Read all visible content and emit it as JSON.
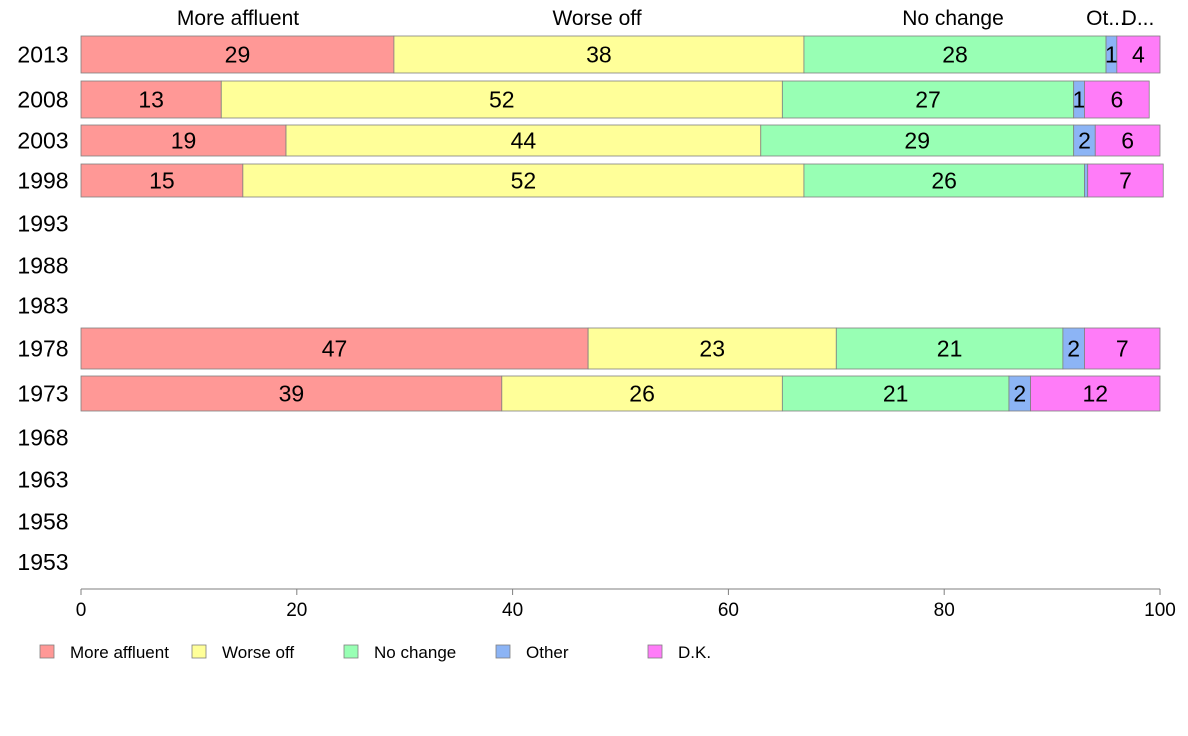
{
  "chart_data": {
    "type": "bar",
    "orientation": "horizontal",
    "stacked": true,
    "categories": [
      "2013",
      "2008",
      "2003",
      "1998",
      "1993",
      "1988",
      "1983",
      "1978",
      "1973",
      "1968",
      "1963",
      "1958",
      "1953"
    ],
    "series": [
      {
        "name": "More affluent",
        "color": "#ff9896",
        "values": [
          29,
          13,
          19,
          15,
          null,
          null,
          null,
          47,
          39,
          null,
          null,
          null,
          null
        ]
      },
      {
        "name": "Worse off",
        "color": "#ffff99",
        "values": [
          38,
          52,
          44,
          52,
          null,
          null,
          null,
          23,
          26,
          null,
          null,
          null,
          null
        ]
      },
      {
        "name": "No change",
        "color": "#98ffb4",
        "values": [
          28,
          27,
          29,
          26,
          null,
          null,
          null,
          21,
          21,
          null,
          null,
          null,
          null
        ]
      },
      {
        "name": "Other",
        "color": "#8cb4f5",
        "values": [
          1,
          1,
          2,
          0.3,
          null,
          null,
          null,
          2,
          2,
          null,
          null,
          null,
          null
        ]
      },
      {
        "name": "D.K.",
        "color": "#ff7cf8",
        "values": [
          4,
          6,
          6,
          7,
          null,
          null,
          null,
          7,
          12,
          null,
          null,
          null,
          null
        ]
      }
    ],
    "value_labels": [
      [
        "29",
        "38",
        "28",
        "1",
        "4"
      ],
      [
        "13",
        "52",
        "27",
        "1",
        "6"
      ],
      [
        "19",
        "44",
        "29",
        "2",
        "6"
      ],
      [
        "15",
        "52",
        "26",
        "",
        "7"
      ],
      [],
      [],
      [],
      [
        "47",
        "23",
        "21",
        "2",
        "7"
      ],
      [
        "39",
        "26",
        "21",
        "2",
        "12"
      ],
      [],
      [],
      [],
      []
    ],
    "top_labels": [
      "More affluent",
      "Worse off",
      "No change",
      "Ot...",
      "D..."
    ],
    "xlim": [
      0,
      100
    ],
    "xticks": [
      0,
      20,
      40,
      60,
      80,
      100
    ],
    "grid": false,
    "legend_position": "bottom"
  }
}
